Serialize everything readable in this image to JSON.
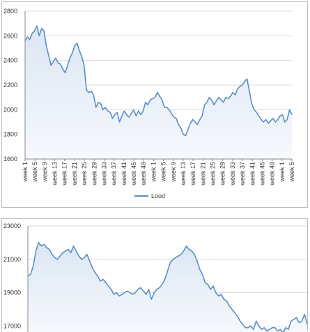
{
  "colors": {
    "line": "#5b8ec6",
    "fill_top": "#dbe6f3",
    "fill_bottom": "#f6f9fd",
    "grid": "#d9d9d9",
    "axis": "#888888"
  },
  "chart_data": [
    {
      "type": "area",
      "ylim": [
        1600,
        2800
      ],
      "yticks": [
        1600,
        1800,
        2000,
        2200,
        2400,
        2600,
        2800
      ],
      "x_tick_labels": [
        "week 1",
        "week 5",
        "week 9",
        "week 13",
        "week 17",
        "week 21",
        "week 25",
        "week 29",
        "week 33",
        "week 37",
        "week 41",
        "week 45",
        "week 49",
        "week 1",
        "week 5",
        "week 9",
        "week 13",
        "week 17",
        "week 21",
        "week 25",
        "week 29",
        "week 33",
        "week 37",
        "week 41",
        "week 45",
        "week 49",
        "week 1",
        "week 5"
      ],
      "legend": {
        "position": "bottom",
        "label": "Lood"
      },
      "grid": true,
      "series": [
        {
          "name": "Lood",
          "x": [
            0,
            1,
            2,
            3,
            4,
            5,
            6,
            7,
            8,
            9,
            10,
            11,
            12,
            13,
            14,
            15,
            16,
            17,
            18,
            19,
            20,
            21,
            22,
            23,
            24,
            25,
            26,
            27,
            28,
            29,
            30,
            31,
            32,
            33,
            34,
            35,
            36,
            37,
            38,
            39,
            40,
            41,
            42,
            43,
            44,
            45,
            46,
            47,
            48,
            49,
            50,
            51,
            52,
            53,
            54,
            55,
            56,
            57,
            58,
            59,
            60,
            61,
            62,
            63,
            64,
            65,
            66,
            67,
            68,
            69,
            70,
            71,
            72,
            73,
            74,
            75,
            76,
            77,
            78,
            79,
            80,
            81,
            82,
            83,
            84,
            85,
            86,
            87,
            88,
            89,
            90,
            91,
            92,
            93,
            94,
            95,
            96,
            97,
            98,
            99,
            100,
            101,
            102,
            103,
            104,
            105,
            106,
            107,
            108,
            109,
            110,
            111,
            112,
            113
          ],
          "values": [
            2560,
            2590,
            2570,
            2620,
            2640,
            2680,
            2600,
            2660,
            2640,
            2520,
            2440,
            2360,
            2390,
            2420,
            2380,
            2370,
            2330,
            2300,
            2360,
            2420,
            2460,
            2520,
            2540,
            2480,
            2430,
            2360,
            2160,
            2140,
            2150,
            2120,
            2020,
            2060,
            2050,
            2000,
            2020,
            1990,
            1980,
            1930,
            1960,
            1980,
            1900,
            1950,
            1990,
            1960,
            1940,
            1970,
            2000,
            1950,
            1990,
            1960,
            1990,
            2060,
            2040,
            2080,
            2090,
            2100,
            2140,
            2110,
            2080,
            2020,
            2020,
            2000,
            1970,
            1940,
            1930,
            1880,
            1850,
            1800,
            1790,
            1840,
            1890,
            1920,
            1900,
            1880,
            1920,
            1950,
            2040,
            2060,
            2100,
            2080,
            2040,
            2070,
            2100,
            2080,
            2060,
            2100,
            2090,
            2110,
            2140,
            2120,
            2170,
            2190,
            2200,
            2230,
            2250,
            2150,
            2050,
            2000,
            1980,
            1950,
            1920,
            1900,
            1920,
            1890,
            1910,
            1930,
            1900,
            1920,
            1950,
            1960,
            1900,
            1920,
            2000,
            1960
          ]
        }
      ]
    },
    {
      "type": "area",
      "ylim": [
        16600,
        23000
      ],
      "yticks": [
        17000,
        19000,
        21000,
        23000
      ],
      "grid": true,
      "series": [
        {
          "values": [
            20000,
            20100,
            20600,
            21500,
            22000,
            21800,
            21900,
            21700,
            21600,
            21300,
            21100,
            21000,
            21200,
            21400,
            21500,
            21600,
            21400,
            21800,
            21500,
            21200,
            21000,
            21100,
            21300,
            20900,
            20500,
            20200,
            20000,
            19700,
            19800,
            19600,
            19400,
            19200,
            18900,
            19000,
            18800,
            18900,
            19000,
            19100,
            19000,
            18900,
            19000,
            19200,
            19300,
            19100,
            18900,
            19200,
            18600,
            19000,
            19200,
            19300,
            19500,
            19800,
            20300,
            20800,
            21000,
            21100,
            21200,
            21300,
            21500,
            21800,
            21600,
            21500,
            21300,
            20900,
            20400,
            20100,
            19600,
            19500,
            19200,
            19400,
            19000,
            18800,
            18900,
            18600,
            18500,
            18200,
            18000,
            17800,
            17600,
            17300,
            17100,
            16900,
            16900,
            17000,
            16800,
            17300,
            17000,
            16800,
            16900,
            16700,
            16800,
            16900,
            16900,
            16700,
            16800,
            16600,
            16900,
            16800,
            17300,
            17400,
            17500,
            17200,
            17300,
            17700,
            17100
          ]
        }
      ]
    }
  ]
}
